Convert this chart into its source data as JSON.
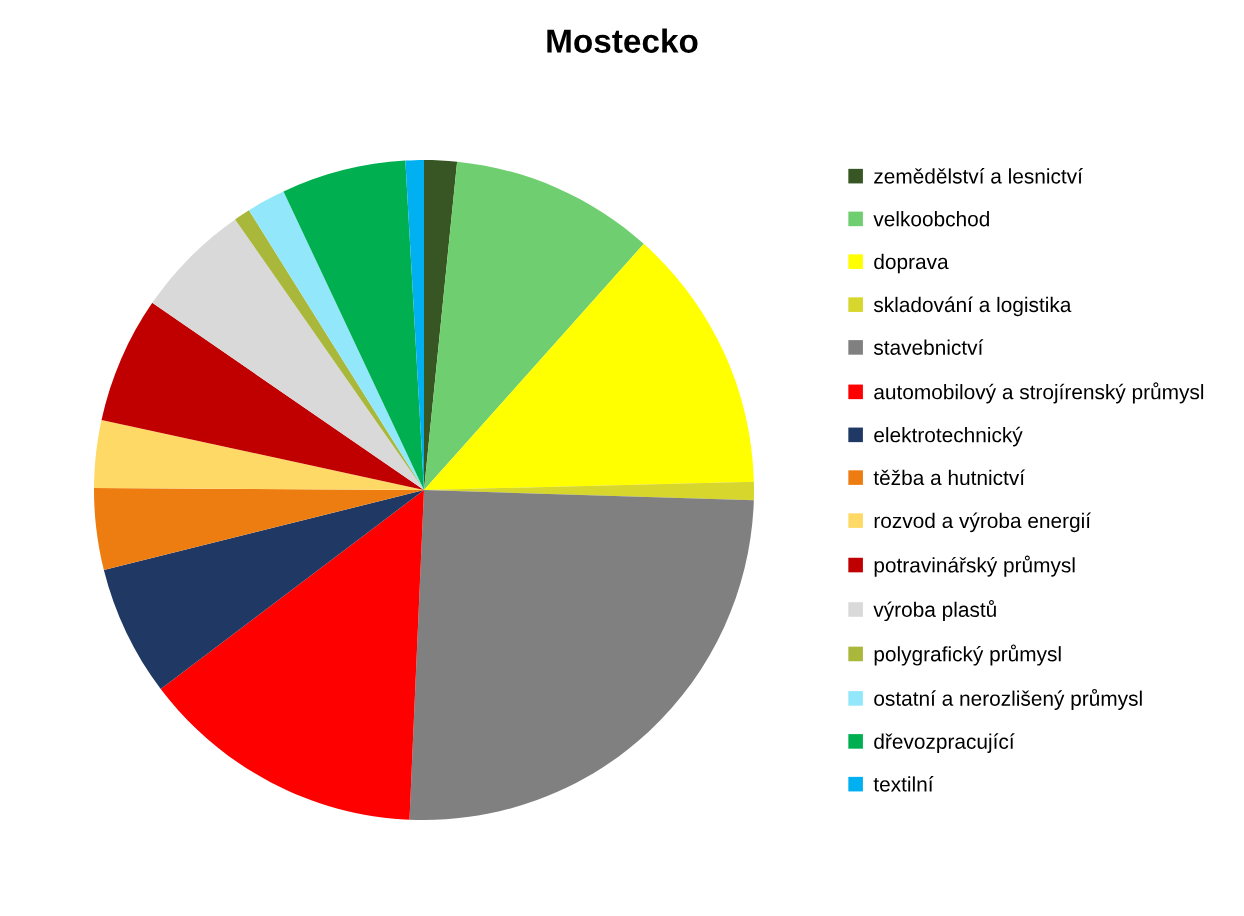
{
  "chart_data": {
    "type": "pie",
    "title": "Mostecko",
    "categories": [
      "zemědělství a lesnictví",
      "velkoobchod",
      "doprava",
      "skladování a logistika",
      "stavebnictví",
      "automobilový a strojírenský průmysl",
      "elektrotechnický",
      "těžba a hutnictví",
      "rozvod a výroba energií",
      "potravinářský průmysl",
      "výroba plastů",
      "polygrafický průmysl",
      "ostatní a nerozlišený průmysl",
      "dřevozpracující",
      "textilní"
    ],
    "values": [
      1.6,
      10,
      13,
      0.9,
      25.2,
      14,
      6.4,
      4,
      3.3,
      6.2,
      5.7,
      0.8,
      1.9,
      6.1,
      0.9
    ],
    "colors": [
      "#375623",
      "#6fcf70",
      "#ffff00",
      "#d6d62c",
      "#808080",
      "#ff0000",
      "#1f3864",
      "#ed7d11",
      "#ffd966",
      "#c00000",
      "#d9d9d9",
      "#a9b73a",
      "#92e8fa",
      "#00b050",
      "#00b0f0"
    ],
    "legend": "right"
  }
}
